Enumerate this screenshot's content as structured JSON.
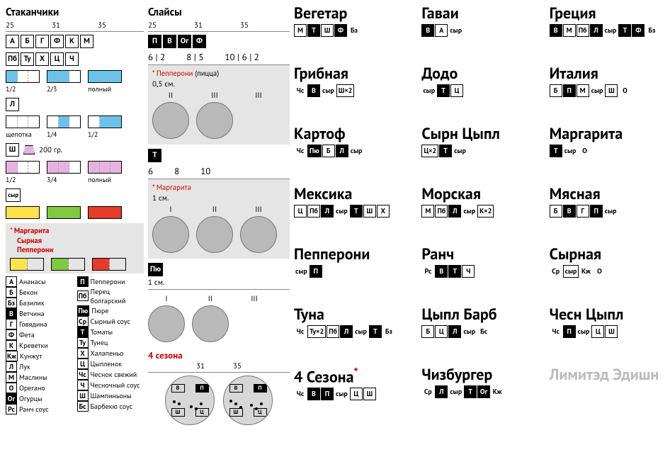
{
  "colors": {
    "blue": "#6bc3ec",
    "purple": "#e6b3e1",
    "yellow": "#ffe34d",
    "green": "#7fc943",
    "red": "#e53b28",
    "grey_panel": "#e5e5e5",
    "circle": "#b9b9b9",
    "text_red": "#c00"
  },
  "cups": {
    "title": "Стаканчики",
    "sizes": [
      "25",
      "31",
      "35"
    ],
    "row1": [
      "А",
      "Б",
      "Г",
      "Ф",
      "К",
      "М"
    ],
    "row2": [
      "Пб",
      "Ту",
      "Х",
      "Ц",
      "Ч"
    ],
    "blue_portions": [
      {
        "label": "1/2",
        "fill": [
          1,
          0,
          0
        ]
      },
      {
        "label": "2/3",
        "fill": [
          1,
          1,
          0
        ]
      },
      {
        "label": "полный",
        "fill": [
          1,
          1,
          1
        ]
      }
    ],
    "row3": [
      "Л"
    ],
    "row3_portions": [
      {
        "label": "щепотка",
        "fill": [
          0,
          0,
          0
        ]
      },
      {
        "label": "1/4",
        "fill": [
          0,
          1,
          0
        ],
        "dual": true
      },
      {
        "label": "1/2",
        "fill": [
          0,
          1,
          1
        ],
        "dual": true
      }
    ],
    "row4_chip": "Ш",
    "row4_note": "200 гр.",
    "purple_portions": [
      {
        "label": "1/2",
        "fill": [
          1,
          0,
          0
        ]
      },
      {
        "label": "3/4",
        "fill": [
          1,
          1,
          0
        ]
      },
      {
        "label": "полный",
        "fill": [
          1,
          1,
          1
        ]
      }
    ],
    "row5_chip": "сыр",
    "colored_portions": [
      {
        "color": "yellow"
      },
      {
        "color": "green"
      },
      {
        "color": "red"
      }
    ],
    "note_lines": [
      "Маргарита",
      "Сырная",
      "Пепперони"
    ],
    "half_portions": [
      {
        "c1": "yellow"
      },
      {
        "c1": "green"
      },
      {
        "c1": "red"
      }
    ]
  },
  "legend_left": [
    {
      "k": "А",
      "dark": false,
      "v": "Ананасы"
    },
    {
      "k": "Б",
      "dark": false,
      "v": "Бекон"
    },
    {
      "k": "Бз",
      "dark": false,
      "v": "Базилик"
    },
    {
      "k": "В",
      "dark": true,
      "v": "Ветчина"
    },
    {
      "k": "Г",
      "dark": false,
      "v": "Говядина"
    },
    {
      "k": "Ф",
      "dark": false,
      "v": "Фета"
    },
    {
      "k": "К",
      "dark": false,
      "v": "Креветки"
    },
    {
      "k": "Кж",
      "dark": false,
      "v": "Кунжут"
    },
    {
      "k": "Л",
      "dark": false,
      "v": "Лук"
    },
    {
      "k": "М",
      "dark": false,
      "v": "Маслины"
    },
    {
      "k": "О",
      "dark": false,
      "v": "Орегано"
    },
    {
      "k": "Ог",
      "dark": true,
      "v": "Огурцы"
    },
    {
      "k": "Рс",
      "dark": false,
      "v": "Ранч соус"
    }
  ],
  "legend_right": [
    {
      "k": "П",
      "dark": true,
      "v": "Пепперони"
    },
    {
      "k": "Пб",
      "dark": false,
      "v": "Перец болгарский"
    },
    {
      "k": "Пю",
      "dark": true,
      "v": "Пюре"
    },
    {
      "k": "Ср",
      "dark": false,
      "v": "Сырный соус"
    },
    {
      "k": "Т",
      "dark": true,
      "v": "Томаты"
    },
    {
      "k": "Ту",
      "dark": false,
      "v": "Тунец"
    },
    {
      "k": "Х",
      "dark": false,
      "v": "Халапеньо"
    },
    {
      "k": "Ц",
      "dark": false,
      "v": "Цыпленок"
    },
    {
      "k": "Чс",
      "dark": false,
      "v": "Чеснок свежий"
    },
    {
      "k": "Ч",
      "dark": false,
      "v": "Чесночный соус"
    },
    {
      "k": "Ш",
      "dark": false,
      "v": "Шампиньоны"
    },
    {
      "k": "Бс",
      "dark": false,
      "v": "Барбекю соус"
    }
  ],
  "slices": {
    "title": "Слайсы",
    "sizes": [
      "25",
      "31",
      "35"
    ],
    "top_chips": [
      "П",
      "В",
      "Ог",
      "Ф"
    ],
    "counts": [
      "6 | 2",
      "8 | 5",
      "10 | 6 | 2"
    ],
    "pepperoni": {
      "title": "* Пепперони",
      "sub": "(пицца)",
      "cm": "0,5 см.",
      "roman": [
        "II",
        "III",
        "III"
      ],
      "show": [
        1,
        1,
        0
      ]
    },
    "t_chip": "Т",
    "t_sizes": [
      "6",
      "8",
      "10"
    ],
    "margarita": {
      "title": "* Маргарита",
      "cm": "1 см.",
      "roman": [
        "I",
        "II",
        "III"
      ],
      "show": [
        1,
        1,
        1
      ]
    },
    "pu_chip": "Пю",
    "pu_cm": "1 см.",
    "pu_roman": [
      "I",
      "II",
      "III"
    ],
    "pu_show": [
      1,
      1,
      0
    ],
    "fourseasons_title": "4 сезона",
    "fs_sizes": [
      "31",
      "35"
    ]
  },
  "recipes": [
    {
      "name": "Вегетар",
      "chips": [
        {
          "t": "М"
        },
        {
          "t": "Т",
          "d": 1
        },
        {
          "t": "Ш"
        },
        {
          "t": "Ф",
          "d": 1
        },
        {
          "t": "Бз",
          "nb": 1
        }
      ]
    },
    {
      "name": "Гаваи",
      "chips": [
        {
          "t": "В",
          "d": 1
        },
        {
          "t": "А"
        },
        {
          "t": "сыр",
          "nb": 1
        }
      ]
    },
    {
      "name": "Греция",
      "chips": [
        {
          "t": "В",
          "d": 1
        },
        {
          "t": "М"
        },
        {
          "t": "Пб"
        },
        {
          "t": "Л",
          "d": 1
        },
        {
          "t": "сыр",
          "nb": 1
        },
        {
          "t": "Т",
          "d": 1
        },
        {
          "t": "Ф",
          "d": 1
        },
        {
          "t": "Бз",
          "nb": 1
        }
      ]
    },
    {
      "name": "Грибная",
      "chips": [
        {
          "t": "Чс",
          "nb": 1
        },
        {
          "t": "В",
          "d": 1
        },
        {
          "t": "сыр",
          "nb": 1
        },
        {
          "t": "Ш×2"
        }
      ]
    },
    {
      "name": "Додо",
      "chips": [
        {
          "t": "сыр",
          "nb": 1
        },
        {
          "t": "Т",
          "d": 1
        },
        {
          "t": "Ц"
        }
      ]
    },
    {
      "name": "Италия",
      "chips": [
        {
          "t": "Б"
        },
        {
          "t": "П",
          "d": 1
        },
        {
          "t": "М"
        },
        {
          "t": "сыр",
          "nb": 1
        },
        {
          "t": "Ш"
        },
        {
          "t": "О",
          "nb": 1
        }
      ]
    },
    {
      "name": "Картоф",
      "chips": [
        {
          "t": "Чс",
          "nb": 1
        },
        {
          "t": "Пю",
          "d": 1
        },
        {
          "t": "Б"
        },
        {
          "t": "Л",
          "d": 1
        },
        {
          "t": "сыр",
          "nb": 1
        }
      ]
    },
    {
      "name": "Сырн Цыпл",
      "chips": [
        {
          "t": "Ц×2"
        },
        {
          "t": "Т",
          "d": 1
        },
        {
          "t": "сыр",
          "nb": 1
        }
      ]
    },
    {
      "name": "Маргарита",
      "chips": [
        {
          "t": "Т",
          "d": 1
        },
        {
          "t": "сыр",
          "nb": 1
        },
        {
          "t": "О",
          "nb": 1
        }
      ]
    },
    {
      "name": "Мексика",
      "chips": [
        {
          "t": "Ц"
        },
        {
          "t": "Пб"
        },
        {
          "t": "Л",
          "d": 1
        },
        {
          "t": "сыр",
          "nb": 1
        },
        {
          "t": "Т",
          "d": 1
        },
        {
          "t": "Ш"
        },
        {
          "t": "Х"
        }
      ]
    },
    {
      "name": "Морская",
      "chips": [
        {
          "t": "М"
        },
        {
          "t": "Пб"
        },
        {
          "t": "Л",
          "d": 1
        },
        {
          "t": "сыр",
          "nb": 1
        },
        {
          "t": "К×2"
        }
      ]
    },
    {
      "name": "Мясная",
      "chips": [
        {
          "t": "Б"
        },
        {
          "t": "В",
          "d": 1
        },
        {
          "t": "Г"
        },
        {
          "t": "П",
          "d": 1
        },
        {
          "t": "сыр",
          "nb": 1
        }
      ]
    },
    {
      "name": "Пепперони",
      "chips": [
        {
          "t": "сыр",
          "nb": 1
        },
        {
          "t": "П",
          "d": 1
        }
      ]
    },
    {
      "name": "Ранч",
      "chips": [
        {
          "t": "Рс",
          "nb": 1
        },
        {
          "t": "В",
          "d": 1
        },
        {
          "t": "Т",
          "d": 1
        },
        {
          "t": "Ч"
        }
      ]
    },
    {
      "name": "Сырная",
      "chips": [
        {
          "t": "Ср",
          "nb": 1
        },
        {
          "t": "сыр"
        },
        {
          "t": "Кж",
          "nb": 1
        },
        {
          "t": "О",
          "nb": 1
        }
      ]
    },
    {
      "name": "Туна",
      "chips": [
        {
          "t": "Чс",
          "nb": 1
        },
        {
          "t": "Ту×2"
        },
        {
          "t": "Пб"
        },
        {
          "t": "Л",
          "d": 1
        },
        {
          "t": "сыр",
          "nb": 1
        },
        {
          "t": "Т",
          "d": 1
        },
        {
          "t": "Бз",
          "nb": 1
        }
      ]
    },
    {
      "name": "Цыпл Барб",
      "chips": [
        {
          "t": "Б"
        },
        {
          "t": "Ц"
        },
        {
          "t": "Л",
          "d": 1
        },
        {
          "t": "сыр",
          "nb": 1
        },
        {
          "t": "Бс",
          "nb": 1
        }
      ]
    },
    {
      "name": "Чесн Цыпл",
      "chips": [
        {
          "t": "Чс",
          "nb": 1
        },
        {
          "t": "П",
          "d": 1
        },
        {
          "t": "сыр",
          "nb": 1
        },
        {
          "t": "Ц"
        },
        {
          "t": "Ш"
        }
      ]
    },
    {
      "name": "4 Сезона",
      "star": true,
      "chips": [
        {
          "t": "Чс",
          "nb": 1
        },
        {
          "t": "В",
          "d": 1
        },
        {
          "t": "П",
          "d": 1
        },
        {
          "t": "сыр",
          "nb": 1
        },
        {
          "t": "Ц"
        },
        {
          "t": "Ш"
        }
      ]
    },
    {
      "name": "Чизбургер",
      "chips": [
        {
          "t": "Ср",
          "nb": 1
        },
        {
          "t": "Л",
          "d": 1
        },
        {
          "t": "сыр",
          "nb": 1
        },
        {
          "t": "Т",
          "d": 1
        },
        {
          "t": "Ог",
          "d": 1
        },
        {
          "t": "Кж",
          "nb": 1
        }
      ]
    },
    {
      "name": "Лимитэд Эдишн",
      "grey": true,
      "chips": []
    }
  ]
}
